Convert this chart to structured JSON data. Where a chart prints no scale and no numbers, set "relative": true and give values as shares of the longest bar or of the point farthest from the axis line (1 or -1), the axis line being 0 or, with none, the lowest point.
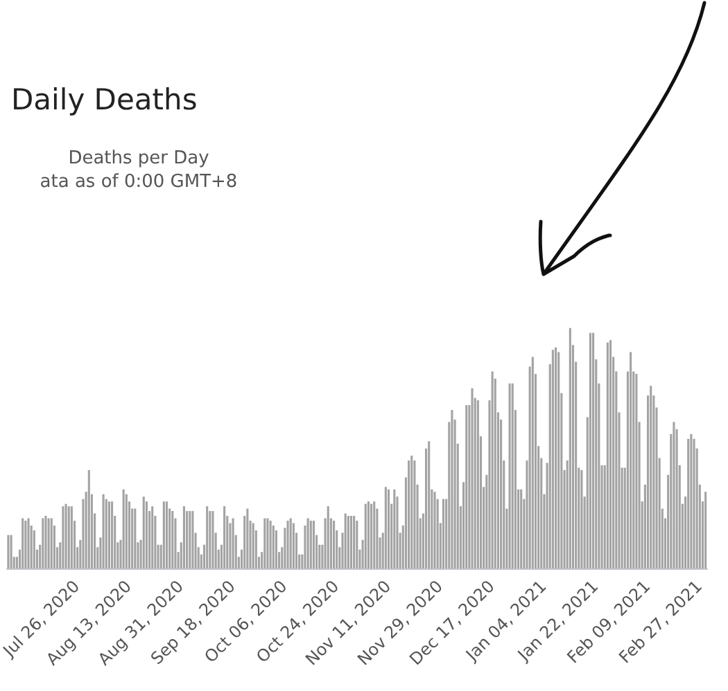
{
  "chart_data": {
    "type": "bar",
    "title": "Daily Deaths",
    "subtitle": "Deaths per Day\nata as of 0:00 GMT+8",
    "relative": true,
    "color": "#a3a3a3",
    "categories": [
      null,
      null,
      null,
      null,
      null,
      null,
      null,
      null,
      null,
      null,
      null,
      null,
      null,
      null,
      null,
      null,
      null,
      null,
      null,
      null,
      null,
      null,
      null,
      null,
      "Jul 26, 2020",
      null,
      null,
      null,
      null,
      null,
      null,
      null,
      null,
      null,
      null,
      null,
      null,
      null,
      null,
      null,
      null,
      null,
      "Aug 13, 2020",
      null,
      null,
      null,
      null,
      null,
      null,
      null,
      null,
      null,
      null,
      null,
      null,
      null,
      null,
      null,
      null,
      null,
      "Aug 31, 2020",
      null,
      null,
      null,
      null,
      null,
      null,
      null,
      null,
      null,
      null,
      null,
      null,
      null,
      null,
      null,
      null,
      null,
      "Sep 18, 2020",
      null,
      null,
      null,
      null,
      null,
      null,
      null,
      null,
      null,
      null,
      null,
      null,
      null,
      null,
      null,
      null,
      null,
      "Oct 06, 2020",
      null,
      null,
      null,
      null,
      null,
      null,
      null,
      null,
      null,
      null,
      null,
      null,
      null,
      null,
      null,
      null,
      null,
      "Oct 24, 2020",
      null,
      null,
      null,
      null,
      null,
      null,
      null,
      null,
      null,
      null,
      null,
      null,
      null,
      null,
      null,
      null,
      null,
      "Nov 11, 2020",
      null,
      null,
      null,
      null,
      null,
      null,
      null,
      null,
      null,
      null,
      null,
      null,
      null,
      null,
      null,
      null,
      null,
      "Nov 29, 2020",
      null,
      null,
      null,
      null,
      null,
      null,
      null,
      null,
      null,
      null,
      null,
      null,
      null,
      null,
      null,
      null,
      null,
      "Dec 17, 2020",
      null,
      null,
      null,
      null,
      null,
      null,
      null,
      null,
      null,
      null,
      null,
      null,
      null,
      null,
      null,
      null,
      null,
      "Jan 04, 2021",
      null,
      null,
      null,
      null,
      null,
      null,
      null,
      null,
      null,
      null,
      null,
      null,
      null,
      null,
      null,
      null,
      null,
      "Jan 22, 2021",
      null,
      null,
      null,
      null,
      null,
      null,
      null,
      null,
      null,
      null,
      null,
      null,
      null,
      null,
      null,
      null,
      null,
      "Feb 09, 2021",
      null,
      null,
      null,
      null,
      null,
      null,
      null,
      null,
      null,
      null,
      null,
      null,
      null,
      null,
      null,
      null,
      null,
      "Feb 27, 2021",
      null,
      null
    ],
    "values": [
      0.14,
      0.14,
      0.05,
      0.05,
      0.08,
      0.21,
      0.2,
      0.21,
      0.18,
      0.16,
      0.08,
      0.1,
      0.21,
      0.22,
      0.21,
      0.21,
      0.18,
      0.09,
      0.11,
      0.26,
      0.27,
      0.26,
      0.26,
      0.2,
      0.09,
      0.12,
      0.29,
      0.32,
      0.41,
      0.31,
      0.23,
      0.09,
      0.13,
      0.31,
      0.29,
      0.28,
      0.28,
      0.22,
      0.11,
      0.12,
      0.33,
      0.31,
      0.28,
      0.25,
      0.25,
      0.11,
      0.12,
      0.3,
      0.28,
      0.24,
      0.26,
      0.22,
      0.1,
      0.1,
      0.28,
      0.28,
      0.25,
      0.24,
      0.21,
      0.07,
      0.11,
      0.26,
      0.24,
      0.24,
      0.24,
      0.15,
      0.09,
      0.06,
      0.1,
      0.26,
      0.24,
      0.24,
      0.15,
      0.08,
      0.1,
      0.26,
      0.22,
      0.19,
      0.21,
      0.14,
      0.05,
      0.08,
      0.22,
      0.25,
      0.2,
      0.19,
      0.16,
      0.05,
      0.07,
      0.21,
      0.21,
      0.2,
      0.18,
      0.16,
      0.07,
      0.09,
      0.17,
      0.2,
      0.21,
      0.19,
      0.15,
      0.06,
      0.06,
      0.18,
      0.21,
      0.2,
      0.2,
      0.14,
      0.1,
      0.1,
      0.21,
      0.26,
      0.21,
      0.2,
      0.16,
      0.09,
      0.15,
      0.23,
      0.22,
      0.22,
      0.22,
      0.2,
      0.08,
      0.12,
      0.27,
      0.28,
      0.27,
      0.28,
      0.25,
      0.13,
      0.15,
      0.34,
      0.33,
      0.27,
      0.33,
      0.3,
      0.15,
      0.18,
      0.38,
      0.45,
      0.47,
      0.45,
      0.35,
      0.21,
      0.23,
      0.5,
      0.53,
      0.33,
      0.32,
      0.29,
      0.19,
      0.29,
      0.29,
      0.61,
      0.66,
      0.62,
      0.52,
      0.26,
      0.36,
      0.68,
      0.68,
      0.75,
      0.71,
      0.7,
      0.55,
      0.34,
      0.39,
      0.7,
      0.82,
      0.79,
      0.65,
      0.62,
      0.45,
      0.25,
      0.77,
      0.77,
      0.66,
      0.33,
      0.33,
      0.29,
      0.45,
      0.84,
      0.88,
      0.81,
      0.51,
      0.46,
      0.31,
      0.44,
      0.85,
      0.91,
      0.92,
      0.9,
      0.73,
      0.41,
      0.45,
      1.0,
      0.93,
      0.86,
      0.42,
      0.41,
      0.3,
      0.63,
      0.98,
      0.98,
      0.87,
      0.77,
      0.43,
      0.43,
      0.94,
      0.95,
      0.88,
      0.82,
      0.65,
      0.42,
      0.42,
      0.82,
      0.9,
      0.82,
      0.81,
      0.61,
      0.28,
      0.35,
      0.72,
      0.76,
      0.72,
      0.67,
      0.46,
      0.25,
      0.21,
      0.39,
      0.56,
      0.61,
      0.58,
      0.43,
      0.27,
      0.3,
      0.54,
      0.56,
      0.54,
      0.5,
      0.35,
      0.28,
      0.32
    ]
  }
}
